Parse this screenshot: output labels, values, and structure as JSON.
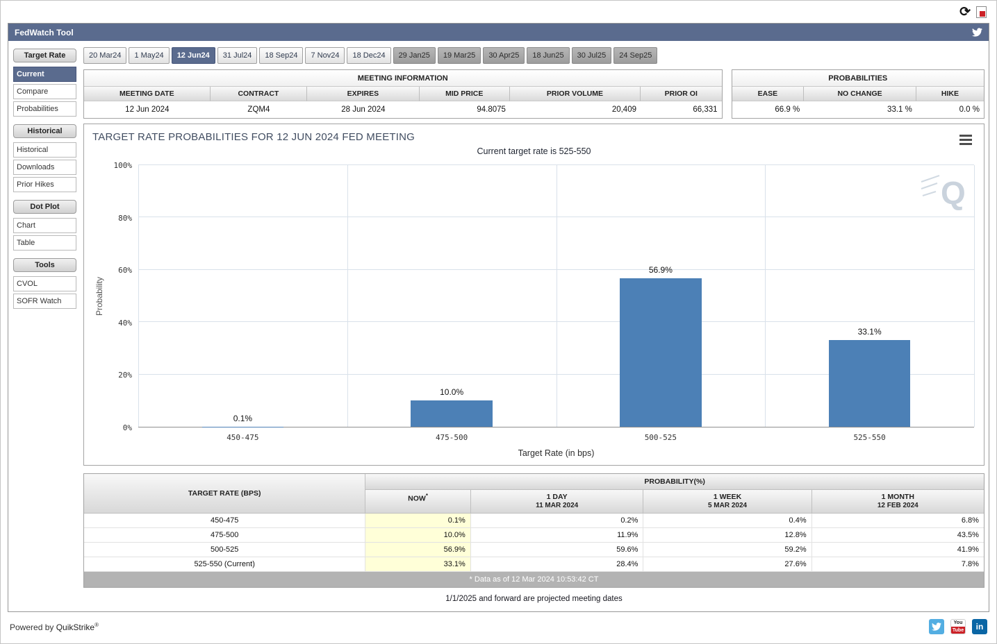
{
  "topbar": {
    "refresh_glyph": "⟳"
  },
  "titlebar": {
    "title": "FedWatch Tool"
  },
  "sidebar": {
    "sections": [
      {
        "header": "Target Rate",
        "selected": "Current",
        "items": [
          "Current",
          "Compare",
          "Probabilities"
        ]
      },
      {
        "header": "Historical",
        "selected": "",
        "items": [
          "Historical",
          "Downloads",
          "Prior Hikes"
        ]
      },
      {
        "header": "Dot Plot",
        "selected": "",
        "items": [
          "Chart",
          "Table"
        ]
      },
      {
        "header": "Tools",
        "selected": "",
        "items": [
          "CVOL",
          "SOFR Watch"
        ]
      }
    ]
  },
  "tabs": {
    "items": [
      {
        "label": "20 Mar24",
        "state": "normal"
      },
      {
        "label": "1 May24",
        "state": "normal"
      },
      {
        "label": "12 Jun24",
        "state": "selected"
      },
      {
        "label": "31 Jul24",
        "state": "normal"
      },
      {
        "label": "18 Sep24",
        "state": "normal"
      },
      {
        "label": "7 Nov24",
        "state": "normal"
      },
      {
        "label": "18 Dec24",
        "state": "normal"
      },
      {
        "label": "29 Jan25",
        "state": "projected"
      },
      {
        "label": "19 Mar25",
        "state": "projected"
      },
      {
        "label": "30 Apr25",
        "state": "projected"
      },
      {
        "label": "18 Jun25",
        "state": "projected"
      },
      {
        "label": "30 Jul25",
        "state": "projected"
      },
      {
        "label": "24 Sep25",
        "state": "projected"
      }
    ]
  },
  "meeting_info": {
    "title": "MEETING INFORMATION",
    "columns": [
      {
        "header": "MEETING DATE",
        "value": "12 Jun 2024",
        "align": "center",
        "width": "19.8%"
      },
      {
        "header": "CONTRACT",
        "value": "ZQM4",
        "align": "center",
        "width": "15.2%"
      },
      {
        "header": "EXPIRES",
        "value": "28 Jun 2024",
        "align": "center",
        "width": "17.6%"
      },
      {
        "header": "MID PRICE",
        "value": "94.8075",
        "align": "right",
        "width": "14.2%"
      },
      {
        "header": "PRIOR VOLUME",
        "value": "20,409",
        "align": "right",
        "width": "20.5%"
      },
      {
        "header": "PRIOR OI",
        "value": "66,331",
        "align": "right",
        "width": "12.7%"
      }
    ]
  },
  "probabilities_panel": {
    "title": "PROBABILITIES",
    "columns": [
      {
        "header": "EASE",
        "value": "66.9 %",
        "align": "right",
        "width": "28.6%"
      },
      {
        "header": "NO CHANGE",
        "value": "33.1 %",
        "align": "right",
        "width": "44.6%"
      },
      {
        "header": "HIKE",
        "value": "0.0 %",
        "align": "right",
        "width": "26.8%"
      }
    ]
  },
  "chart_data": {
    "type": "bar",
    "title": "TARGET RATE PROBABILITIES FOR 12 JUN 2024 FED MEETING",
    "subtitle": "Current target rate is 525-550",
    "categories": [
      "450-475",
      "475-500",
      "500-525",
      "525-550"
    ],
    "values": [
      0.1,
      10.0,
      56.9,
      33.1
    ],
    "bar_labels": [
      "0.1%",
      "10.0%",
      "56.9%",
      "33.1%"
    ],
    "xlabel": "Target Rate (in bps)",
    "ylabel": "Probability",
    "ylim": [
      0,
      100
    ],
    "yticks": [
      0,
      20,
      40,
      60,
      80,
      100
    ],
    "ytick_labels": [
      "0%",
      "20%",
      "40%",
      "60%",
      "80%",
      "100%"
    ],
    "grid": true,
    "legend": "none",
    "bar_color": "#4c80b6",
    "watermark": "Q"
  },
  "prob_table": {
    "rate_header": "TARGET RATE (BPS)",
    "group_header": "PROBABILITY(%)",
    "columns": [
      {
        "top": "NOW",
        "star": "*",
        "bottom": ""
      },
      {
        "top": "1 DAY",
        "star": "",
        "bottom": "11 MAR 2024"
      },
      {
        "top": "1 WEEK",
        "star": "",
        "bottom": "5 MAR 2024"
      },
      {
        "top": "1 MONTH",
        "star": "",
        "bottom": "12 FEB 2024"
      }
    ],
    "rows": [
      {
        "rate": "450-475",
        "values": [
          "0.1%",
          "0.2%",
          "0.4%",
          "6.8%"
        ]
      },
      {
        "rate": "475-500",
        "values": [
          "10.0%",
          "11.9%",
          "12.8%",
          "43.5%"
        ]
      },
      {
        "rate": "500-525",
        "values": [
          "56.9%",
          "59.6%",
          "59.2%",
          "41.9%"
        ]
      },
      {
        "rate": "525-550 (Current)",
        "values": [
          "33.1%",
          "28.4%",
          "27.6%",
          "7.8%"
        ]
      }
    ],
    "footnote": "* Data as of 12 Mar 2024 10:53:42 CT",
    "projection_note": "1/1/2025 and forward are projected meeting dates"
  },
  "footer": {
    "powered_by": "Powered by",
    "brand": "QuikStrike",
    "trademark": "®",
    "youtube_top": "You",
    "youtube_bottom": "Tube",
    "linkedin_label": "in"
  },
  "colors": {
    "accent": "#5a6b8e",
    "bar": "#4c80b6",
    "now_column": "#ffffd8",
    "projected_tab": "#a5a5a5",
    "gridline": "#d9e1ea"
  }
}
